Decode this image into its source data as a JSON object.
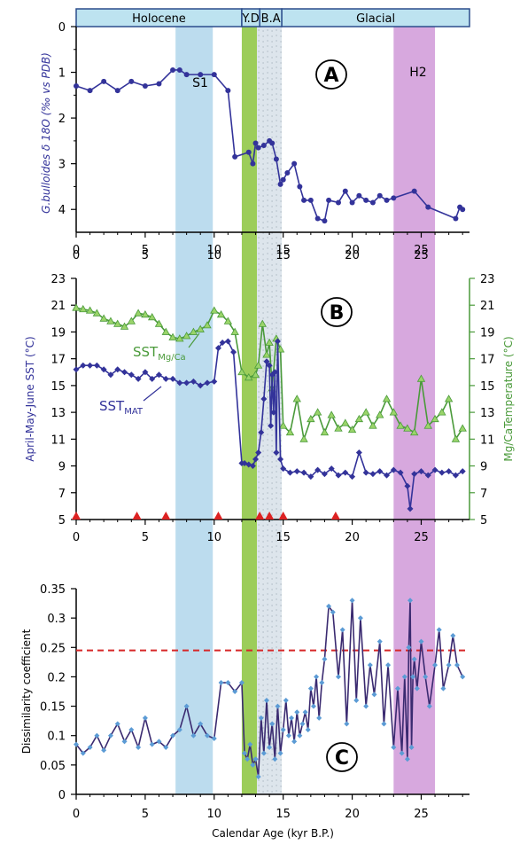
{
  "chart_data": [
    {
      "panel": "A",
      "type": "line",
      "panel_label": "A",
      "ylabel": "G.bulloides δ 18O (‰ vs PDB)",
      "ylim": [
        4.5,
        0
      ],
      "y_inverted": true,
      "yticks": [
        "0",
        "1",
        "2",
        "3",
        "4"
      ],
      "xlim": [
        0,
        28.5
      ],
      "xticks": [
        "0",
        "5",
        "10",
        "15",
        "20",
        "25"
      ],
      "colors": {
        "series": "#33339a"
      },
      "band_labels": [
        "S1",
        "H2"
      ],
      "series": [
        {
          "x": [
            0,
            1,
            2,
            3,
            4,
            5,
            6,
            7,
            7.5,
            8,
            9,
            10,
            11,
            11.5,
            12.5,
            12.8,
            13,
            13.2,
            13.6,
            14,
            14.2,
            14.5,
            14.8,
            15,
            15.3,
            15.8,
            16.2,
            16.5,
            17,
            17.5,
            18,
            18.3,
            19,
            19.5,
            20,
            20.5,
            21,
            21.5,
            22,
            22.5,
            23,
            24.5,
            25.5,
            27.5,
            27.8,
            28
          ],
          "y": [
            1.3,
            1.4,
            1.2,
            1.4,
            1.2,
            1.3,
            1.25,
            0.95,
            0.95,
            1.05,
            1.05,
            1.05,
            1.4,
            2.85,
            2.75,
            3.0,
            2.55,
            2.65,
            2.6,
            2.5,
            2.55,
            2.9,
            3.45,
            3.35,
            3.2,
            3.0,
            3.5,
            3.8,
            3.8,
            4.2,
            4.25,
            3.8,
            3.85,
            3.6,
            3.85,
            3.7,
            3.8,
            3.85,
            3.7,
            3.8,
            3.75,
            3.6,
            3.95,
            4.2,
            3.95,
            4.0
          ]
        }
      ]
    },
    {
      "panel": "B",
      "type": "line",
      "panel_label": "B",
      "ylabel": "April-May-June SST (°C)",
      "ylabel_right": "Mg/CaTemperature (°C)",
      "ylim": [
        5,
        23
      ],
      "yticks": [
        "5",
        "7",
        "9",
        "11",
        "13",
        "15",
        "17",
        "19",
        "21",
        "23"
      ],
      "xlim": [
        0,
        28.5
      ],
      "xticks": [
        "0",
        "5",
        "10",
        "15",
        "20",
        "25"
      ],
      "series_labels": [
        {
          "base": "SST",
          "sub": "Mg/Ca"
        },
        {
          "base": "SST",
          "sub": "MAT"
        }
      ],
      "colors": {
        "mat": "#33339a",
        "mg": "#4a9a3a",
        "marker": "#dd2222",
        "mg_fill": "#9ad46a"
      },
      "age_control_points": [
        0,
        4.4,
        6.5,
        10.3,
        13.3,
        14,
        15,
        18.8
      ],
      "series": [
        {
          "x": [
            0,
            0.5,
            1,
            1.5,
            2,
            2.5,
            3,
            3.5,
            4,
            4.5,
            5,
            5.5,
            6,
            6.5,
            7,
            7.5,
            8,
            8.5,
            9,
            9.5,
            10,
            10.3,
            10.6,
            11,
            11.4,
            12,
            12.2,
            12.5,
            12.8,
            13,
            13.2,
            13.4,
            13.6,
            13.8,
            14,
            14.1,
            14.2,
            14.3,
            14.4,
            14.5,
            14.6,
            14.8,
            15,
            15.5,
            16,
            16.5,
            17,
            17.5,
            18,
            18.5,
            19,
            19.5,
            20,
            20.5,
            21,
            21.5,
            22,
            22.5,
            23,
            23.5,
            24,
            24.2,
            24.5,
            25,
            25.5,
            26,
            26.5,
            27,
            27.5,
            28
          ],
          "y": [
            16.2,
            16.5,
            16.5,
            16.5,
            16.2,
            15.8,
            16.2,
            16,
            15.8,
            15.5,
            16,
            15.5,
            15.8,
            15.5,
            15.5,
            15.2,
            15.2,
            15.3,
            15,
            15.2,
            15.3,
            17.8,
            18.2,
            18.3,
            17.5,
            9.2,
            9.2,
            9.1,
            9.0,
            9.5,
            10,
            11.5,
            14,
            16.8,
            16.5,
            12,
            15.8,
            13,
            16,
            10,
            18.3,
            9.5,
            8.8,
            8.5,
            8.6,
            8.5,
            8.2,
            8.7,
            8.4,
            8.8,
            8.3,
            8.5,
            8.2,
            10,
            8.5,
            8.4,
            8.6,
            8.3,
            8.7,
            8.5,
            7.5,
            5.8,
            8.4,
            8.6,
            8.3,
            8.7,
            8.5,
            8.6,
            8.3,
            8.6
          ]
        },
        {
          "x": [
            0,
            0.5,
            1,
            1.5,
            2,
            2.5,
            3,
            3.5,
            4,
            4.5,
            5,
            5.5,
            6,
            6.5,
            7,
            7.5,
            8,
            8.5,
            9,
            9.5,
            10,
            10.5,
            11,
            11.5,
            12,
            12.5,
            13,
            13.2,
            13.5,
            13.8,
            14,
            14.2,
            14.5,
            14.8,
            15,
            15.5,
            16,
            16.5,
            17,
            17.5,
            18,
            18.5,
            19,
            19.5,
            20,
            20.5,
            21,
            21.5,
            22,
            22.5,
            23,
            23.5,
            24,
            24.5,
            25,
            25.5,
            26,
            26.5,
            27,
            27.5,
            28
          ],
          "y": [
            20.8,
            20.7,
            20.6,
            20.4,
            20.0,
            19.8,
            19.6,
            19.4,
            19.8,
            20.4,
            20.3,
            20.1,
            19.6,
            19.0,
            18.6,
            18.5,
            18.7,
            19.0,
            19.2,
            19.5,
            20.6,
            20.3,
            19.8,
            19.0,
            16.0,
            15.6,
            15.8,
            16.5,
            19.6,
            17.3,
            18.2,
            14.8,
            18.5,
            17.7,
            12.0,
            11.5,
            14.0,
            11.0,
            12.5,
            13.0,
            11.5,
            12.8,
            11.8,
            12.2,
            11.7,
            12.5,
            13.0,
            12.0,
            12.8,
            14.0,
            13.0,
            12.0,
            11.8,
            11.5,
            15.5,
            12.0,
            12.5,
            13.0,
            14.0,
            11.0,
            11.8
          ]
        }
      ]
    },
    {
      "panel": "C",
      "type": "line",
      "panel_label": "C",
      "ylabel": "Dissimilarity coefficient",
      "xlabel": "Calendar Age (kyr B.P.)",
      "ylim": [
        0,
        0.35
      ],
      "yticks": [
        "0",
        "0.05",
        "0.1",
        "0.15",
        "0.2",
        "0.25",
        "0.3",
        "0.35"
      ],
      "xlim": [
        0,
        28.5
      ],
      "xticks": [
        "0",
        "5",
        "10",
        "15",
        "20",
        "25"
      ],
      "threshold": 0.245,
      "colors": {
        "series": "#3a2a70",
        "marker": "#5b9bd5",
        "threshold": "#d62728"
      },
      "series": [
        {
          "x": [
            0,
            0.5,
            1,
            1.5,
            2,
            2.5,
            3,
            3.5,
            4,
            4.5,
            5,
            5.5,
            6,
            6.5,
            7,
            7.5,
            8,
            8.5,
            9,
            9.5,
            10,
            10.5,
            11,
            11.5,
            12,
            12.2,
            12.4,
            12.6,
            12.8,
            13,
            13.2,
            13.4,
            13.6,
            13.8,
            14,
            14.2,
            14.4,
            14.6,
            14.8,
            15,
            15.2,
            15.4,
            15.6,
            15.8,
            16,
            16.2,
            16.4,
            16.6,
            16.8,
            17,
            17.2,
            17.4,
            17.6,
            17.8,
            18,
            18.3,
            18.6,
            19,
            19.3,
            19.6,
            20,
            20.3,
            20.6,
            21,
            21.3,
            21.6,
            22,
            22.3,
            22.6,
            23,
            23.3,
            23.6,
            23.8,
            24,
            24.1,
            24.2,
            24.3,
            24.4,
            24.5,
            24.7,
            25,
            25.3,
            25.6,
            26,
            26.3,
            26.6,
            27,
            27.3,
            27.6,
            28
          ],
          "y": [
            0.085,
            0.07,
            0.08,
            0.1,
            0.075,
            0.1,
            0.12,
            0.09,
            0.11,
            0.08,
            0.13,
            0.085,
            0.09,
            0.08,
            0.1,
            0.11,
            0.15,
            0.1,
            0.12,
            0.1,
            0.095,
            0.19,
            0.19,
            0.175,
            0.19,
            0.07,
            0.06,
            0.085,
            0.05,
            0.06,
            0.03,
            0.13,
            0.07,
            0.16,
            0.08,
            0.12,
            0.06,
            0.15,
            0.07,
            0.11,
            0.16,
            0.1,
            0.13,
            0.09,
            0.14,
            0.1,
            0.12,
            0.14,
            0.11,
            0.18,
            0.15,
            0.2,
            0.13,
            0.19,
            0.23,
            0.32,
            0.31,
            0.2,
            0.28,
            0.12,
            0.33,
            0.16,
            0.3,
            0.15,
            0.22,
            0.17,
            0.26,
            0.12,
            0.22,
            0.08,
            0.18,
            0.07,
            0.2,
            0.06,
            0.25,
            0.33,
            0.08,
            0.2,
            0.23,
            0.18,
            0.26,
            0.2,
            0.15,
            0.22,
            0.28,
            0.18,
            0.22,
            0.27,
            0.22,
            0.2
          ]
        }
      ]
    }
  ],
  "shared": {
    "epoch_labels": [
      "Holocene",
      "Y.D",
      "B.A",
      "Glacial"
    ],
    "epochs": [
      {
        "name": "Holocene",
        "start": 0,
        "end": 12
      },
      {
        "name": "Y.D",
        "start": 12,
        "end": 13.3
      },
      {
        "name": "B.A",
        "start": 13.3,
        "end": 14.9
      },
      {
        "name": "Glacial",
        "start": 14.9,
        "end": 28.5
      }
    ],
    "bands": [
      {
        "name": "S1",
        "start": 7.2,
        "end": 9.9,
        "color": "#bcdcee"
      },
      {
        "name": "Y.D",
        "start": 12,
        "end": 13.1,
        "color": "#9ccd5a"
      },
      {
        "name": "B.A",
        "start": 13.1,
        "end": 14.9,
        "color": "#dde5ec"
      },
      {
        "name": "H2",
        "start": 23,
        "end": 26,
        "color": "#d7a8de"
      }
    ],
    "epoch_bar_color": "#bde3f0",
    "epoch_bar_border": "#2b4d8c"
  }
}
